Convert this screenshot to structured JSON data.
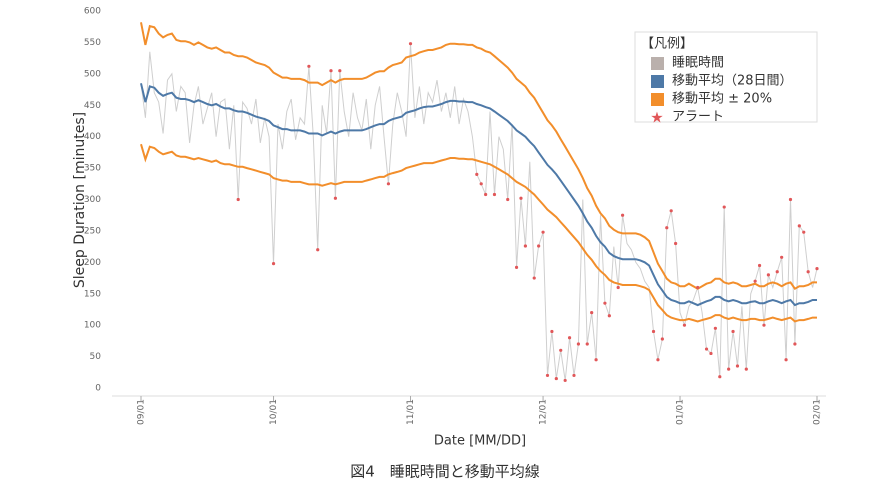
{
  "chart_data": {
    "type": "line",
    "x_label": "Date [MM/DD]",
    "y_label": "Sleep Duration [minutes]",
    "caption": "図4　睡眠時間と移動平均線",
    "legend_title": "【凡例】",
    "legend_position": "upper right",
    "ylim": [
      0,
      600
    ],
    "yticks": [
      0,
      50,
      100,
      150,
      200,
      250,
      300,
      350,
      400,
      450,
      500,
      550,
      600
    ],
    "categories": [
      "09/01",
      null,
      null,
      null,
      null,
      null,
      null,
      null,
      null,
      null,
      null,
      null,
      null,
      null,
      null,
      null,
      null,
      null,
      null,
      null,
      null,
      null,
      null,
      null,
      null,
      null,
      null,
      null,
      null,
      null,
      "10/01",
      null,
      null,
      null,
      null,
      null,
      null,
      null,
      null,
      null,
      null,
      null,
      null,
      null,
      null,
      null,
      null,
      null,
      null,
      null,
      null,
      null,
      null,
      null,
      null,
      null,
      null,
      null,
      null,
      null,
      null,
      "11/01",
      null,
      null,
      null,
      null,
      null,
      null,
      null,
      null,
      null,
      null,
      null,
      null,
      null,
      null,
      null,
      null,
      null,
      null,
      null,
      null,
      null,
      null,
      null,
      null,
      null,
      null,
      null,
      null,
      null,
      "12/01",
      null,
      null,
      null,
      null,
      null,
      null,
      null,
      null,
      null,
      null,
      null,
      null,
      null,
      null,
      null,
      null,
      null,
      null,
      null,
      null,
      null,
      null,
      null,
      null,
      null,
      null,
      null,
      null,
      null,
      null,
      "01/01",
      null,
      null,
      null,
      null,
      null,
      null,
      null,
      null,
      null,
      null,
      null,
      null,
      null,
      null,
      null,
      null,
      null,
      null,
      null,
      null,
      null,
      null,
      null,
      null,
      null,
      null,
      null,
      null,
      null,
      null,
      "02/01"
    ],
    "series": [
      {
        "name": "睡眠時間",
        "color": "#cfcfcf",
        "legend_color": "#bab0ac",
        "style": "line",
        "values": [
          485,
          430,
          535,
          470,
          455,
          405,
          490,
          500,
          440,
          480,
          470,
          390,
          450,
          480,
          420,
          445,
          470,
          400,
          455,
          460,
          380,
          450,
          300,
          455,
          445,
          420,
          460,
          390,
          430,
          400,
          198,
          420,
          380,
          440,
          460,
          395,
          430,
          420,
          512,
          400,
          220,
          450,
          405,
          505,
          302,
          505,
          440,
          400,
          470,
          430,
          410,
          460,
          380,
          450,
          480,
          400,
          325,
          420,
          470,
          440,
          400,
          548,
          430,
          480,
          420,
          470,
          455,
          490,
          440,
          470,
          430,
          480,
          420,
          460,
          440,
          400,
          340,
          325,
          308,
          440,
          308,
          400,
          380,
          300,
          420,
          192,
          302,
          226,
          360,
          175,
          226,
          248,
          20,
          90,
          15,
          60,
          12,
          80,
          20,
          70,
          300,
          70,
          120,
          45,
          275,
          135,
          115,
          225,
          160,
          275,
          230,
          220,
          200,
          190,
          170,
          160,
          90,
          45,
          78,
          255,
          282,
          230,
          120,
          100,
          130,
          140,
          160,
          120,
          62,
          55,
          95,
          18,
          288,
          30,
          90,
          35,
          130,
          30,
          150,
          170,
          195,
          100,
          180,
          160,
          185,
          208,
          45,
          300,
          70,
          258,
          248,
          185,
          160,
          190
        ]
      },
      {
        "name": "移動平均（28日間）",
        "color": "#4e79a7",
        "style": "line",
        "values": [
          485,
          455,
          480,
          478,
          470,
          465,
          468,
          470,
          462,
          460,
          460,
          458,
          455,
          458,
          455,
          452,
          450,
          452,
          448,
          445,
          445,
          442,
          440,
          440,
          438,
          435,
          432,
          430,
          428,
          425,
          418,
          415,
          412,
          412,
          410,
          410,
          410,
          408,
          405,
          405,
          405,
          402,
          405,
          408,
          405,
          408,
          410,
          410,
          410,
          410,
          410,
          412,
          415,
          418,
          420,
          420,
          425,
          428,
          430,
          432,
          438,
          440,
          442,
          445,
          447,
          448,
          448,
          450,
          452,
          455,
          457,
          457,
          456,
          456,
          455,
          455,
          452,
          450,
          447,
          445,
          440,
          435,
          430,
          425,
          418,
          410,
          405,
          400,
          392,
          385,
          375,
          365,
          355,
          348,
          340,
          330,
          320,
          310,
          300,
          290,
          278,
          265,
          255,
          242,
          232,
          225,
          215,
          210,
          207,
          205,
          205,
          205,
          205,
          203,
          200,
          195,
          180,
          165,
          155,
          145,
          140,
          138,
          135,
          135,
          138,
          135,
          132,
          135,
          138,
          140,
          145,
          145,
          140,
          138,
          140,
          138,
          135,
          135,
          137,
          138,
          135,
          135,
          138,
          140,
          138,
          135,
          138,
          140,
          132,
          135,
          135,
          137,
          140,
          140
        ]
      },
      {
        "name": "移動平均 ± 20%",
        "color": "#f28e2b",
        "style": "band",
        "values": [
          582,
          546,
          576,
          574,
          564,
          558,
          562,
          564,
          554,
          552,
          552,
          550,
          546,
          550,
          546,
          542,
          540,
          542,
          538,
          534,
          534,
          530,
          528,
          528,
          526,
          522,
          518,
          516,
          514,
          510,
          502,
          498,
          494,
          494,
          492,
          492,
          492,
          490,
          486,
          486,
          486,
          482,
          486,
          490,
          486,
          490,
          492,
          492,
          492,
          492,
          492,
          494,
          498,
          502,
          504,
          504,
          510,
          514,
          516,
          518,
          526,
          528,
          530,
          534,
          536,
          538,
          538,
          540,
          542,
          546,
          548,
          548,
          547,
          547,
          546,
          546,
          542,
          540,
          536,
          534,
          528,
          522,
          516,
          510,
          502,
          492,
          486,
          480,
          470,
          462,
          450,
          438,
          426,
          418,
          408,
          396,
          384,
          372,
          360,
          348,
          334,
          318,
          306,
          290,
          278,
          270,
          258,
          252,
          248,
          246,
          246,
          246,
          246,
          244,
          240,
          234,
          216,
          198,
          186,
          174,
          168,
          166,
          162,
          162,
          166,
          162,
          158,
          162,
          166,
          168,
          174,
          174,
          168,
          166,
          168,
          166,
          162,
          162,
          164,
          166,
          162,
          162,
          166,
          168,
          166,
          162,
          166,
          168,
          158,
          162,
          162,
          164,
          168,
          168
        ],
        "values_lower": [
          388,
          364,
          384,
          382,
          376,
          372,
          374,
          376,
          370,
          368,
          368,
          366,
          364,
          366,
          364,
          362,
          360,
          362,
          358,
          356,
          356,
          354,
          352,
          352,
          350,
          348,
          346,
          344,
          342,
          340,
          334,
          332,
          330,
          330,
          328,
          328,
          328,
          326,
          324,
          324,
          324,
          322,
          324,
          326,
          324,
          326,
          328,
          328,
          328,
          328,
          328,
          330,
          332,
          334,
          336,
          336,
          340,
          342,
          344,
          346,
          350,
          352,
          354,
          356,
          358,
          358,
          358,
          360,
          362,
          364,
          366,
          366,
          365,
          365,
          364,
          364,
          362,
          360,
          358,
          356,
          352,
          348,
          344,
          340,
          334,
          328,
          324,
          320,
          314,
          308,
          300,
          292,
          284,
          278,
          272,
          264,
          256,
          248,
          240,
          232,
          222,
          212,
          204,
          194,
          186,
          180,
          172,
          168,
          166,
          164,
          164,
          164,
          164,
          162,
          160,
          156,
          144,
          132,
          124,
          116,
          112,
          110,
          108,
          108,
          110,
          108,
          106,
          108,
          110,
          112,
          116,
          116,
          112,
          110,
          112,
          110,
          108,
          108,
          110,
          110,
          108,
          108,
          110,
          112,
          110,
          108,
          110,
          112,
          106,
          108,
          108,
          110,
          112,
          112
        ]
      },
      {
        "name": "アラート",
        "color": "#e15759",
        "style": "marker",
        "values": [
          null,
          null,
          null,
          null,
          null,
          null,
          null,
          null,
          null,
          null,
          null,
          null,
          null,
          null,
          null,
          null,
          null,
          null,
          null,
          null,
          null,
          null,
          300,
          null,
          null,
          null,
          null,
          null,
          null,
          null,
          198,
          null,
          null,
          null,
          null,
          null,
          null,
          null,
          512,
          null,
          220,
          null,
          null,
          505,
          302,
          505,
          null,
          null,
          null,
          null,
          null,
          null,
          null,
          null,
          null,
          null,
          325,
          null,
          null,
          null,
          null,
          548,
          null,
          null,
          null,
          null,
          null,
          null,
          null,
          null,
          null,
          null,
          null,
          null,
          null,
          null,
          340,
          325,
          308,
          null,
          308,
          null,
          null,
          300,
          null,
          192,
          302,
          226,
          null,
          175,
          226,
          248,
          20,
          90,
          15,
          60,
          12,
          80,
          20,
          70,
          null,
          70,
          120,
          45,
          null,
          135,
          115,
          null,
          160,
          275,
          null,
          null,
          null,
          null,
          null,
          null,
          90,
          45,
          78,
          255,
          282,
          230,
          null,
          100,
          null,
          null,
          160,
          null,
          62,
          55,
          95,
          18,
          288,
          30,
          90,
          35,
          null,
          30,
          null,
          170,
          195,
          100,
          180,
          null,
          185,
          208,
          45,
          300,
          70,
          258,
          248,
          185,
          null,
          190
        ]
      }
    ]
  }
}
